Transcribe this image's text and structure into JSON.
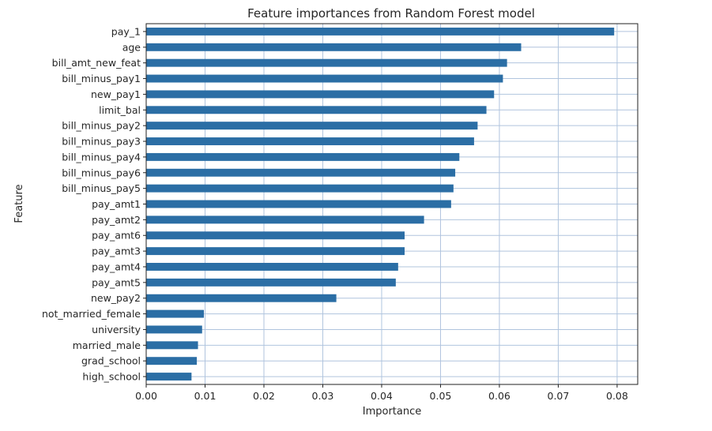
{
  "chart_data": {
    "type": "bar",
    "orientation": "horizontal",
    "title": "Feature importances from Random Forest model",
    "xlabel": "Importance",
    "ylabel": "Feature",
    "xlim": [
      0,
      0.0835
    ],
    "xticks": [
      "0.00",
      "0.01",
      "0.02",
      "0.03",
      "0.04",
      "0.05",
      "0.06",
      "0.07",
      "0.08"
    ],
    "grid": true,
    "bar_color": "#2b6ea5",
    "categories": [
      "pay_1",
      "age",
      "bill_amt_new_feat",
      "bill_minus_pay1",
      "new_pay1",
      "limit_bal",
      "bill_minus_pay2",
      "bill_minus_pay3",
      "bill_minus_pay4",
      "bill_minus_pay6",
      "bill_minus_pay5",
      "pay_amt1",
      "pay_amt2",
      "pay_amt6",
      "pay_amt3",
      "pay_amt4",
      "pay_amt5",
      "new_pay2",
      "not_married_female",
      "university",
      "married_male",
      "grad_school",
      "high_school"
    ],
    "values": [
      0.0795,
      0.0637,
      0.0613,
      0.0606,
      0.0591,
      0.0578,
      0.0563,
      0.0557,
      0.0532,
      0.0525,
      0.0522,
      0.0518,
      0.0472,
      0.0439,
      0.0439,
      0.0428,
      0.0424,
      0.0323,
      0.0098,
      0.0095,
      0.0088,
      0.0086,
      0.0077
    ]
  }
}
